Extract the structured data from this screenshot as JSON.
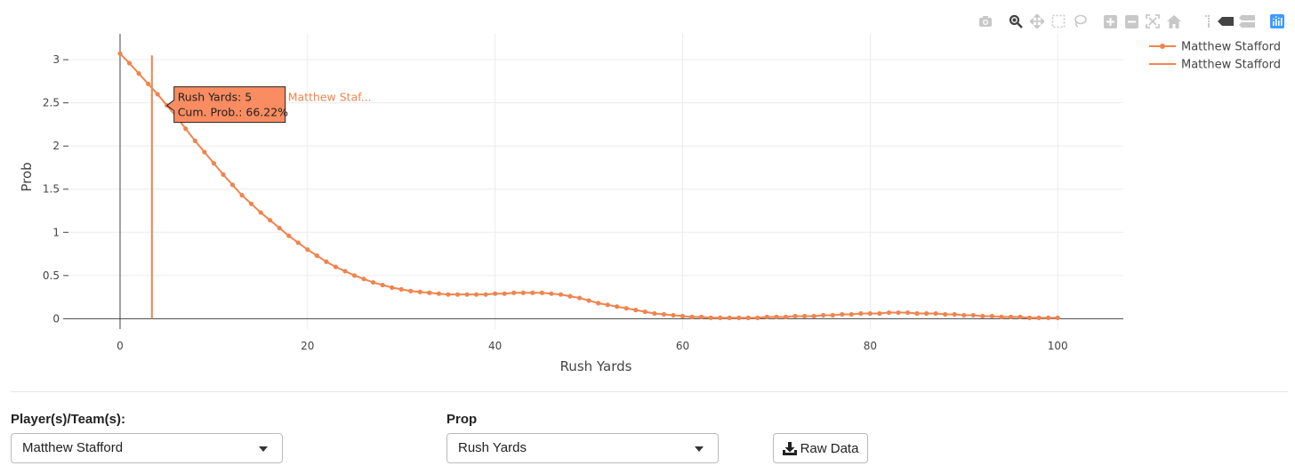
{
  "chart_data": {
    "type": "line",
    "xlabel": "Rush Yards",
    "ylabel": "Prob",
    "xlim": [
      -5.5,
      107
    ],
    "ylim": [
      -0.12,
      3.3
    ],
    "x_ticks": [
      0,
      20,
      40,
      60,
      80,
      100
    ],
    "y_ticks": [
      0,
      0.5,
      1,
      1.5,
      2,
      2.5,
      3
    ],
    "grid": true,
    "legend_placement": "top-right",
    "series": [
      {
        "name": "Matthew Stafford",
        "mode": "lines+markers",
        "color": "#f0844e",
        "x": [
          0,
          1,
          2,
          3,
          4,
          5,
          6,
          7,
          8,
          9,
          10,
          11,
          12,
          13,
          14,
          15,
          16,
          17,
          18,
          19,
          20,
          21,
          22,
          23,
          24,
          25,
          26,
          27,
          28,
          29,
          30,
          31,
          32,
          33,
          34,
          35,
          36,
          37,
          38,
          39,
          40,
          41,
          42,
          43,
          44,
          45,
          46,
          47,
          48,
          49,
          50,
          51,
          52,
          53,
          54,
          55,
          56,
          57,
          58,
          59,
          60,
          61,
          62,
          63,
          64,
          65,
          66,
          67,
          68,
          69,
          70,
          71,
          72,
          73,
          74,
          75,
          76,
          77,
          78,
          79,
          80,
          81,
          82,
          83,
          84,
          85,
          86,
          87,
          88,
          89,
          90,
          91,
          92,
          93,
          94,
          95,
          96,
          97,
          98,
          99,
          100
        ],
        "y": [
          3.07,
          2.96,
          2.84,
          2.72,
          2.6,
          2.47,
          2.34,
          2.2,
          2.06,
          1.93,
          1.8,
          1.67,
          1.55,
          1.43,
          1.33,
          1.23,
          1.14,
          1.05,
          0.96,
          0.88,
          0.8,
          0.73,
          0.66,
          0.6,
          0.55,
          0.5,
          0.46,
          0.42,
          0.39,
          0.36,
          0.34,
          0.32,
          0.31,
          0.3,
          0.29,
          0.28,
          0.28,
          0.28,
          0.28,
          0.28,
          0.29,
          0.29,
          0.3,
          0.3,
          0.3,
          0.3,
          0.29,
          0.28,
          0.26,
          0.24,
          0.21,
          0.18,
          0.16,
          0.14,
          0.12,
          0.1,
          0.08,
          0.06,
          0.05,
          0.04,
          0.03,
          0.02,
          0.02,
          0.01,
          0.01,
          0.01,
          0.01,
          0.01,
          0.01,
          0.02,
          0.02,
          0.02,
          0.03,
          0.03,
          0.03,
          0.04,
          0.04,
          0.05,
          0.05,
          0.06,
          0.06,
          0.06,
          0.07,
          0.07,
          0.07,
          0.06,
          0.06,
          0.06,
          0.05,
          0.05,
          0.04,
          0.04,
          0.03,
          0.03,
          0.02,
          0.02,
          0.02,
          0.01,
          0.01,
          0.01,
          0.01
        ]
      },
      {
        "name": "Matthew Stafford",
        "mode": "lines",
        "color": "#f0844e",
        "x": [
          3.4,
          3.4
        ],
        "y": [
          0,
          3.05
        ]
      }
    ],
    "hover": {
      "line1": "Rush Yards: 5",
      "line2": "Cum. Prob.: 66.22%",
      "name": "Matthew Staf...",
      "x": 5,
      "y": 2.47
    }
  },
  "controls": {
    "player_label": "Player(s)/Team(s):",
    "player_value": "Matthew Stafford",
    "prop_label": "Prop",
    "prop_value": "Rush Yards",
    "raw_button": "Raw Data"
  },
  "modebar": [
    "camera-icon",
    "zoom-icon",
    "pan-icon",
    "box-select-icon",
    "lasso-icon",
    "zoom-in-icon",
    "zoom-out-icon",
    "autoscale-icon",
    "home-icon",
    "spike-lines-icon",
    "hover-closest-icon",
    "hover-compare-icon",
    "plotly-logo-icon"
  ]
}
